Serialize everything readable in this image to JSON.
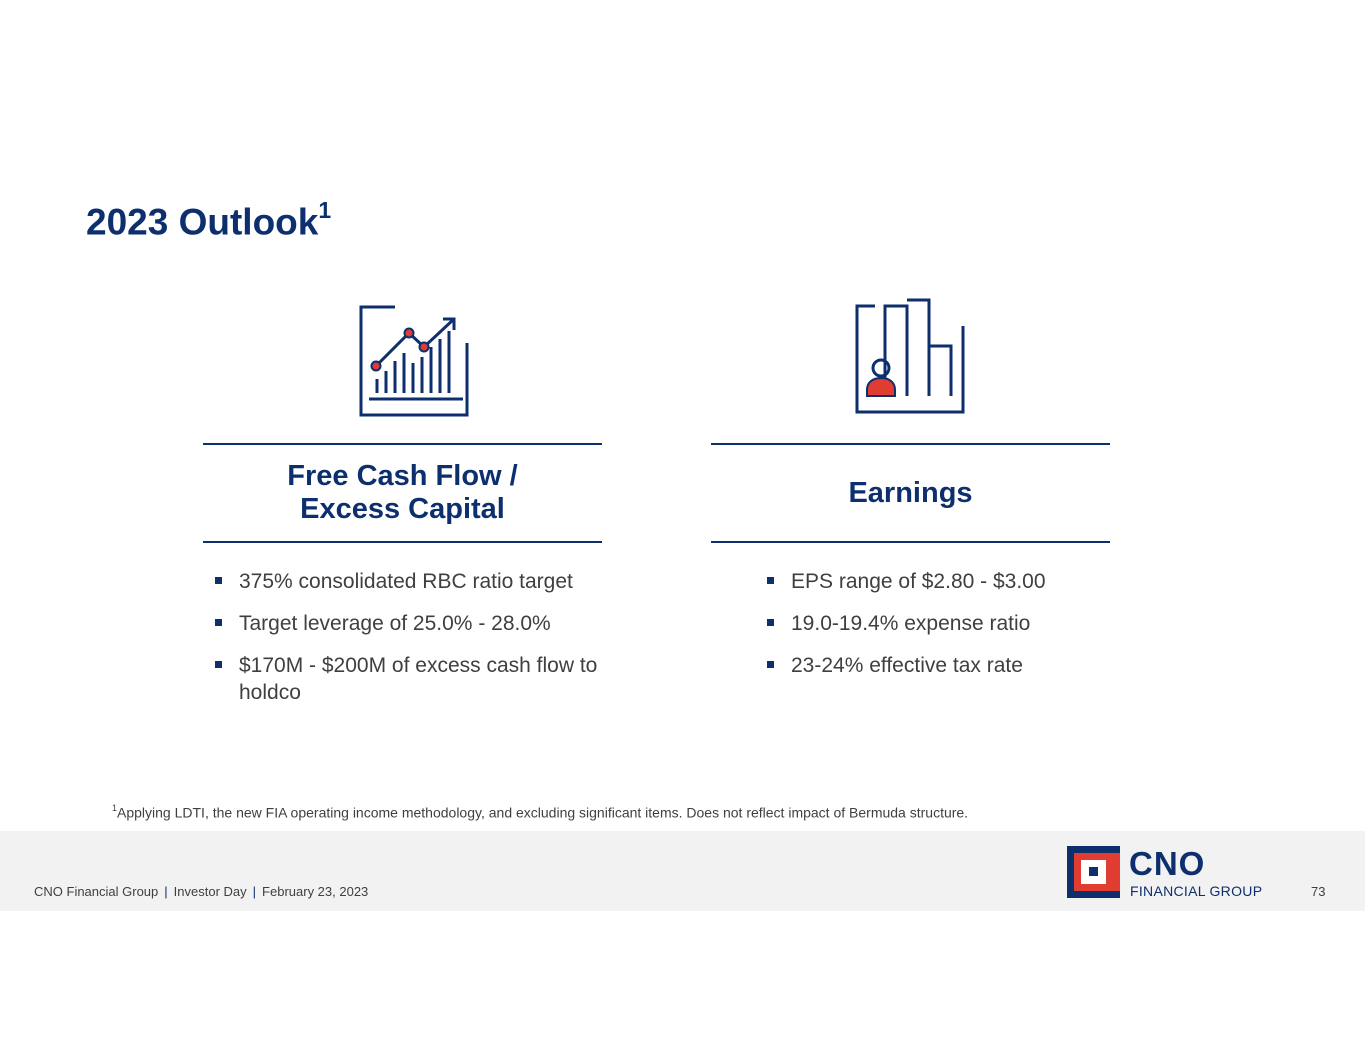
{
  "slide": {
    "title": "2023 Outlook",
    "title_footnote_mark": "1"
  },
  "columns": [
    {
      "heading_line1": "Free Cash Flow /",
      "heading_line2": "Excess Capital",
      "icon": "growth-chart-icon",
      "bullets": [
        "375% consolidated RBC ratio target",
        "Target leverage of 25.0% - 28.0%",
        "$170M - $200M of excess cash flow to holdco"
      ]
    },
    {
      "heading": "Earnings",
      "icon": "person-bar-chart-icon",
      "bullets": [
        "EPS range of $2.80 - $3.00",
        "19.0-19.4% expense ratio",
        "23-24% effective tax rate"
      ]
    }
  ],
  "footnote": {
    "mark": "1",
    "text": "Applying LDTI, the new FIA operating income methodology, and excluding significant items.  Does not reflect impact of Bermuda structure."
  },
  "footer": {
    "company": "CNO Financial Group",
    "event": "Investor Day",
    "date": "February 23, 2023",
    "separator": "|",
    "page_number": "73",
    "logo_main": "CNO",
    "logo_sub": "FINANCIAL GROUP"
  },
  "colors": {
    "primary_navy": "#0d2f6e",
    "accent_red": "#e03c31",
    "body_text": "#3f3f3f",
    "footer_bg": "#f2f2f2"
  }
}
